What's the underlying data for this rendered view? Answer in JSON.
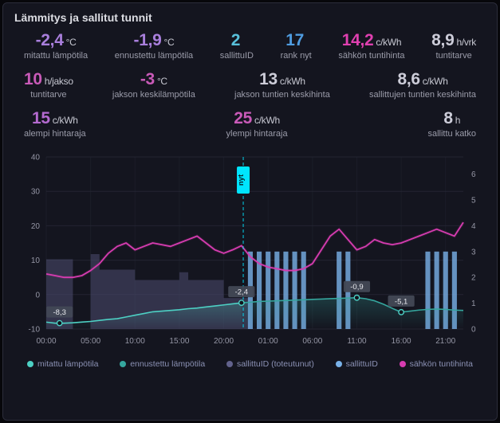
{
  "panel": {
    "title": "Lämmitys ja sallitut tunnit"
  },
  "stats": {
    "row1": [
      {
        "value": "-2,4",
        "unit": "°C",
        "label": "mitattu lämpötila",
        "color": "#a97fdc"
      },
      {
        "value": "-1,9",
        "unit": "°C",
        "label": "ennustettu lämpötila",
        "color": "#a97fdc"
      },
      {
        "value": "2",
        "unit": "",
        "label": "sallittuID",
        "color": "#58c0da"
      },
      {
        "value": "17",
        "unit": "",
        "label": "rank nyt",
        "color": "#4f9ce0"
      },
      {
        "value": "14,2",
        "unit": "c/kWh",
        "label": "sähkön tuntihinta",
        "color": "#e040b0"
      },
      {
        "value": "8,9",
        "unit": "h/vrk",
        "label": "tuntitarve",
        "color": "#ccccd8"
      }
    ],
    "row2": [
      {
        "value": "10",
        "unit": "h/jakso",
        "label": "tuntitarve",
        "color": "#c95ab8"
      },
      {
        "value": "-3",
        "unit": "°C",
        "label": "jakson keskilämpötila",
        "color": "#c95ab8"
      },
      {
        "value": "13",
        "unit": "c/kWh",
        "label": "jakson tuntien keskihinta",
        "color": "#ccccd8"
      },
      {
        "value": "8,6",
        "unit": "c/kWh",
        "label": "sallittujen tuntien keskihinta",
        "color": "#ccccd8"
      }
    ],
    "row3": [
      {
        "value": "15",
        "unit": "c/kWh",
        "label": "alempi hintaraja",
        "color": "#b46ad0"
      },
      {
        "value": "25",
        "unit": "c/kWh",
        "label": "ylempi hintaraja",
        "color": "#c95ab8"
      },
      {
        "value": "8",
        "unit": "h",
        "label": "sallittu katko",
        "color": "#ccccd8"
      }
    ]
  },
  "legend": {
    "items": [
      {
        "label": "mitattu lämpötila",
        "color": "#4dd0c4"
      },
      {
        "label": "ennustettu lämpötila",
        "color": "#35a69e"
      },
      {
        "label": "sallittuID (toteutunut)",
        "color": "#62628c"
      },
      {
        "label": "sallittuID",
        "color": "#79b1e8"
      },
      {
        "label": "sähkön tuntihinta",
        "color": "#d63cb0"
      }
    ]
  },
  "chart_data": {
    "type": "mixed-line-bar-steparea",
    "x_hours_total": 48,
    "x_ticks": [
      {
        "t": 0,
        "label": "00:00"
      },
      {
        "t": 5,
        "label": "05:00"
      },
      {
        "t": 10,
        "label": "10:00"
      },
      {
        "t": 15,
        "label": "15:00"
      },
      {
        "t": 20,
        "label": "20:00"
      },
      {
        "t": 25,
        "label": "01:00"
      },
      {
        "t": 30,
        "label": "06:00"
      },
      {
        "t": 35,
        "label": "11:00"
      },
      {
        "t": 40,
        "label": "16:00"
      },
      {
        "t": 45,
        "label": "21:00"
      }
    ],
    "left_axis": {
      "min": -10,
      "max": 40,
      "ticks": [
        -10,
        0,
        10,
        20,
        30,
        40
      ]
    },
    "right_axis": {
      "min": 0,
      "max": 6,
      "ticks": [
        0,
        1,
        2,
        3,
        4,
        5,
        6
      ]
    },
    "annotation": {
      "t": 22.2,
      "label": "nyt",
      "color": "#00e5ff"
    },
    "point_labels": [
      {
        "t": 1.5,
        "v": -8.3,
        "text": "-8,3"
      },
      {
        "t": 22,
        "v": -2.4,
        "text": "-2,4"
      },
      {
        "t": 35,
        "v": -0.9,
        "text": "-0,9"
      },
      {
        "t": 40,
        "v": -5.1,
        "text": "-5,1"
      }
    ],
    "series": {
      "price": {
        "name": "sähkön tuntihinta",
        "color": "#d63cb0",
        "axis": "left",
        "type": "line",
        "values": [
          6,
          5.5,
          5,
          5,
          5.5,
          7,
          9,
          12,
          14,
          15,
          13,
          14,
          15,
          14.5,
          14,
          15,
          16,
          17,
          15,
          13,
          12,
          13,
          14.2,
          11,
          9,
          8,
          7.5,
          7,
          7,
          7.5,
          9,
          13,
          17,
          19,
          16,
          13,
          14,
          16,
          15,
          14.5,
          15,
          16,
          17,
          18,
          19,
          18,
          17,
          21
        ]
      },
      "measured": {
        "name": "mitattu lämpötila",
        "color": "#4dd0c4",
        "axis": "left",
        "type": "line",
        "values": [
          -8,
          -8.3,
          -8.3,
          -8.2,
          -8,
          -7.8,
          -7.5,
          -7.2,
          -7,
          -6.5,
          -6,
          -5.5,
          -5,
          -4.8,
          -4.6,
          -4.4,
          -4.1,
          -3.9,
          -3.6,
          -3.3,
          -3,
          -2.7,
          -2.4,
          null,
          null,
          null,
          null,
          null,
          null,
          null,
          null,
          null,
          null,
          null,
          null,
          null,
          null,
          null,
          null,
          null,
          null,
          null,
          null,
          null,
          null,
          null,
          null,
          null
        ]
      },
      "forecast": {
        "name": "ennustettu lämpötila",
        "color": "#35a69e",
        "axis": "left",
        "type": "line",
        "values": [
          null,
          null,
          null,
          null,
          null,
          null,
          null,
          null,
          null,
          null,
          null,
          null,
          null,
          null,
          null,
          null,
          null,
          null,
          null,
          null,
          null,
          null,
          -2.4,
          -2.2,
          -2,
          -1.9,
          -1.8,
          -1.7,
          -1.6,
          -1.5,
          -1.4,
          -1.3,
          -1.2,
          -1.1,
          -1,
          -0.9,
          -1.2,
          -1.8,
          -2.8,
          -4,
          -5.1,
          -4.8,
          -4.5,
          -4.3,
          -4.2,
          -4.3,
          -4.5,
          -4.6
        ]
      },
      "realized": {
        "name": "sallittuID (toteutunut)",
        "color": "#4d4d70",
        "axis": "right",
        "type": "step-area",
        "values": [
          2.7,
          2.7,
          2.7,
          0,
          0,
          2.9,
          2.3,
          2.3,
          2.3,
          2.3,
          1.9,
          1.9,
          1.9,
          1.9,
          1.9,
          2.2,
          1.9,
          1.9,
          1.9,
          1.9,
          1.2,
          1.2,
          1.2,
          0,
          0,
          0,
          0,
          0,
          0,
          0,
          0,
          0,
          0,
          0,
          0,
          0,
          0,
          0,
          0,
          0,
          0,
          0,
          0,
          0,
          0,
          0,
          0,
          0
        ]
      },
      "planned": {
        "name": "sallittuID",
        "color": "#79b1e8",
        "axis": "right",
        "type": "bars",
        "values": [
          0,
          0,
          0,
          0,
          0,
          0,
          0,
          0,
          0,
          0,
          0,
          0,
          0,
          0,
          0,
          0,
          0,
          0,
          0,
          0,
          0,
          0,
          0,
          3,
          3,
          3,
          3,
          3,
          3,
          3,
          0,
          0,
          0,
          3,
          3,
          0,
          0,
          0,
          0,
          0,
          0,
          0,
          0,
          3,
          3,
          3,
          3,
          0
        ]
      }
    }
  }
}
